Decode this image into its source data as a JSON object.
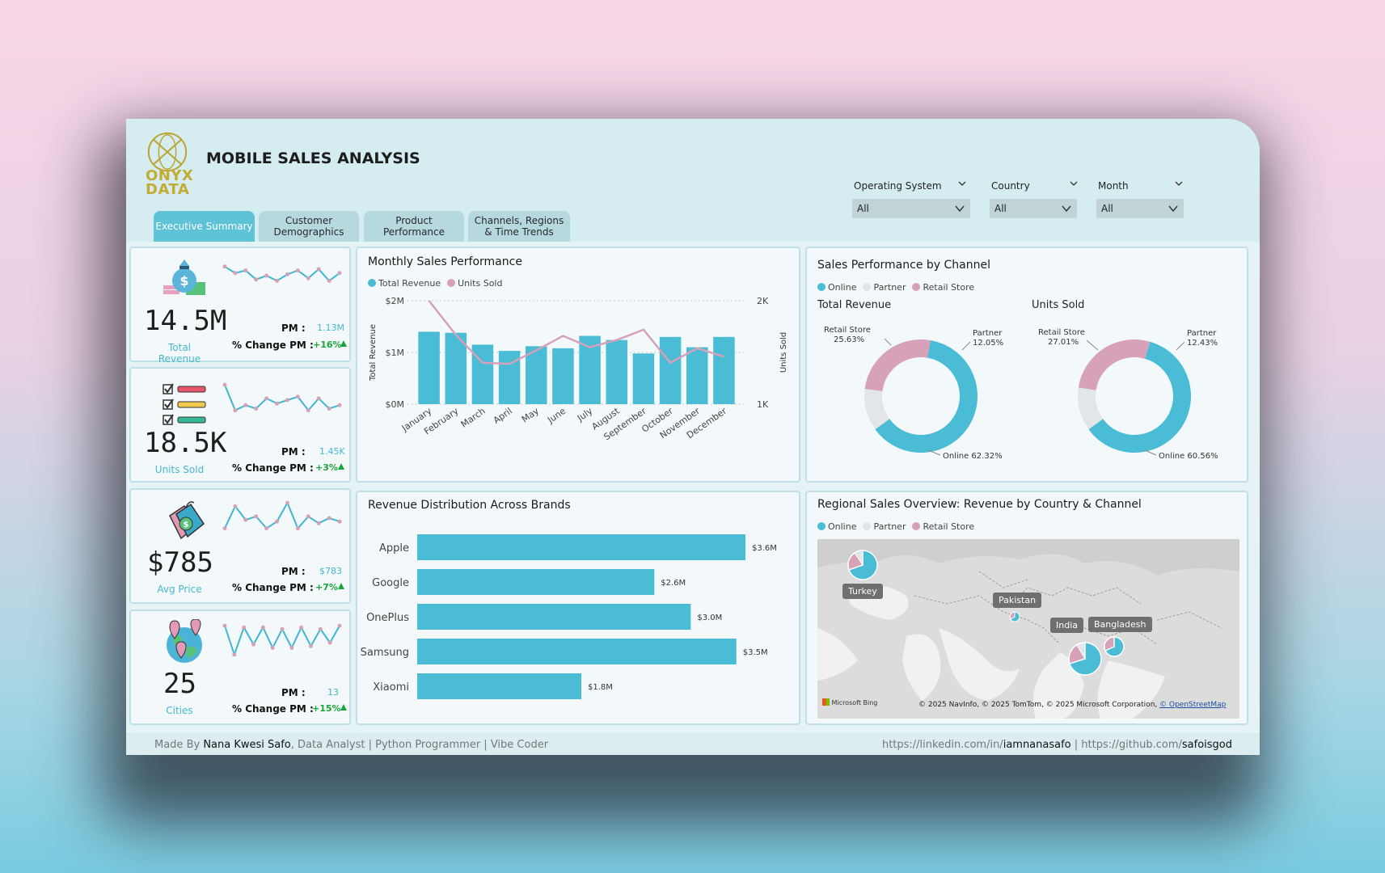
{
  "header": {
    "logo_text_1": "ONYX",
    "logo_text_2": "DATA",
    "title": "MOBILE SALES ANALYSIS",
    "tabs": [
      {
        "label_1": "Executive Summary",
        "label_2": ""
      },
      {
        "label_1": "Customer",
        "label_2": "Demographics"
      },
      {
        "label_1": "Product",
        "label_2": "Performance"
      },
      {
        "label_1": "Channels, Regions",
        "label_2": "& Time Trends"
      }
    ],
    "filters": [
      {
        "label": "Operating System",
        "value": "All"
      },
      {
        "label": "Country",
        "value": "All"
      },
      {
        "label": "Month",
        "value": "All"
      }
    ]
  },
  "kpis": [
    {
      "value": "14.5M",
      "label": "Total Revenue",
      "pm_label": "PM :",
      "pm_value": "1.13M",
      "pct_label": "% Change PM :",
      "pct_value": "+16%",
      "icon": "money-bag-icon",
      "spark": [
        0.85,
        0.6,
        0.7,
        0.35,
        0.5,
        0.3,
        0.55,
        0.7,
        0.4,
        0.75,
        0.3,
        0.6
      ]
    },
    {
      "value": "18.5K",
      "label": "Units Sold",
      "pm_label": "PM :",
      "pm_value": "1.45K",
      "pct_label": "% Change PM :",
      "pct_value": "+3%",
      "icon": "checklist-icon",
      "spark": [
        0.95,
        0.2,
        0.35,
        0.25,
        0.55,
        0.4,
        0.5,
        0.6,
        0.2,
        0.55,
        0.25,
        0.35
      ]
    },
    {
      "value": "$785",
      "label": "Avg Price",
      "pm_label": "PM :",
      "pm_value": "$783",
      "pct_label": "% Change PM :",
      "pct_value": "+7%",
      "icon": "price-tag-icon",
      "spark": [
        0.2,
        0.85,
        0.45,
        0.55,
        0.2,
        0.4,
        0.95,
        0.2,
        0.55,
        0.35,
        0.5,
        0.4
      ]
    },
    {
      "value": "25",
      "label": "Cities",
      "pm_label": "PM :",
      "pm_value": "13",
      "pct_label": "% Change PM :",
      "pct_value": "+15%",
      "icon": "globe-pins-icon",
      "spark": [
        0.95,
        0.1,
        0.9,
        0.4,
        0.9,
        0.3,
        0.85,
        0.3,
        0.9,
        0.35,
        0.85,
        0.45,
        0.95
      ]
    }
  ],
  "monthly": {
    "title": "Monthly Sales Performance",
    "legend": [
      {
        "label": "Total Revenue",
        "color": "#4bbcd6"
      },
      {
        "label": "Units Sold",
        "color": "#d6a1b9"
      }
    ],
    "ylabel_left": "Total Revenue",
    "ylabel_right": "Units Sold",
    "left_ticks": [
      "$2M",
      "$1M",
      "$0M"
    ],
    "right_ticks": [
      "2K",
      "1K"
    ]
  },
  "brands": {
    "title": "Revenue Distribution Across Brands"
  },
  "channel": {
    "title": "Sales Performance by Channel",
    "legend": [
      {
        "label": "Online",
        "color": "#4bbcd6"
      },
      {
        "label": "Partner",
        "color": "#e3e6e9"
      },
      {
        "label": "Retail Store",
        "color": "#d6a1b9"
      }
    ],
    "donut1": {
      "title": "Total Revenue",
      "online": "Online 62.32%",
      "partner_1": "Partner",
      "partner_2": "12.05%",
      "retail_1": "Retail Store",
      "retail_2": "25.63%"
    },
    "donut2": {
      "title": "Units Sold",
      "online": "Online 60.56%",
      "partner_1": "Partner",
      "partner_2": "12.43%",
      "retail_1": "Retail Store",
      "retail_2": "27.01%"
    }
  },
  "regional": {
    "title": "Regional Sales Overview: Revenue by Country & Channel",
    "legend": [
      {
        "label": "Online",
        "color": "#4bbcd6"
      },
      {
        "label": "Partner",
        "color": "#e3e6e9"
      },
      {
        "label": "Retail Store",
        "color": "#d6a1b9"
      }
    ],
    "countries": [
      "Turkey",
      "Pakistan",
      "India",
      "Bangladesh"
    ],
    "bing": "Microsoft Bing",
    "credits": "© 2025 NavInfo, © 2025 TomTom, © 2025 Microsoft Corporation,",
    "osm": "© OpenStreetMap"
  },
  "footer": {
    "made_by": "Made By ",
    "name": "Nana Kwesi Safo",
    "role": ", Data Analyst | Python Programmer | Vibe Coder",
    "li_prefix": "https://linkedin.com/in/",
    "li_user": "iamnanasafo",
    "sep": " | ",
    "gh_prefix": "https://github.com/",
    "gh_user": "safoisgod"
  },
  "chart_data": [
    {
      "type": "bar",
      "title": "Monthly Sales Performance",
      "categories": [
        "January",
        "February",
        "March",
        "April",
        "May",
        "June",
        "July",
        "August",
        "September",
        "October",
        "November",
        "December"
      ],
      "series": [
        {
          "name": "Total Revenue",
          "values": [
            1.4,
            1.38,
            1.15,
            1.03,
            1.12,
            1.08,
            1.32,
            1.24,
            0.98,
            1.3,
            1.1,
            1.3
          ]
        },
        {
          "name": "Units Sold",
          "values": [
            2.0,
            1.67,
            1.4,
            1.39,
            1.52,
            1.66,
            1.55,
            1.62,
            1.72,
            1.4,
            1.54,
            1.46
          ]
        }
      ],
      "ylabel": "Total Revenue",
      "y2label": "Units Sold",
      "ylim": [
        0,
        2
      ],
      "y2lim": [
        1,
        2
      ]
    },
    {
      "type": "bar",
      "title": "Revenue Distribution Across Brands",
      "categories": [
        "Apple",
        "Google",
        "OnePlus",
        "Samsung",
        "Xiaomi"
      ],
      "values": [
        3.6,
        2.6,
        3.0,
        3.5,
        1.8
      ],
      "labels": [
        "$3.6M",
        "$2.6M",
        "$3.0M",
        "$3.5M",
        "$1.8M"
      ],
      "xlim": [
        0,
        3.6
      ]
    },
    {
      "type": "pie",
      "title": "Total Revenue",
      "labels": [
        "Online",
        "Partner",
        "Retail Store"
      ],
      "values": [
        62.32,
        12.05,
        25.63
      ]
    },
    {
      "type": "pie",
      "title": "Units Sold",
      "labels": [
        "Online",
        "Partner",
        "Retail Store"
      ],
      "values": [
        60.56,
        12.43,
        27.01
      ]
    }
  ]
}
